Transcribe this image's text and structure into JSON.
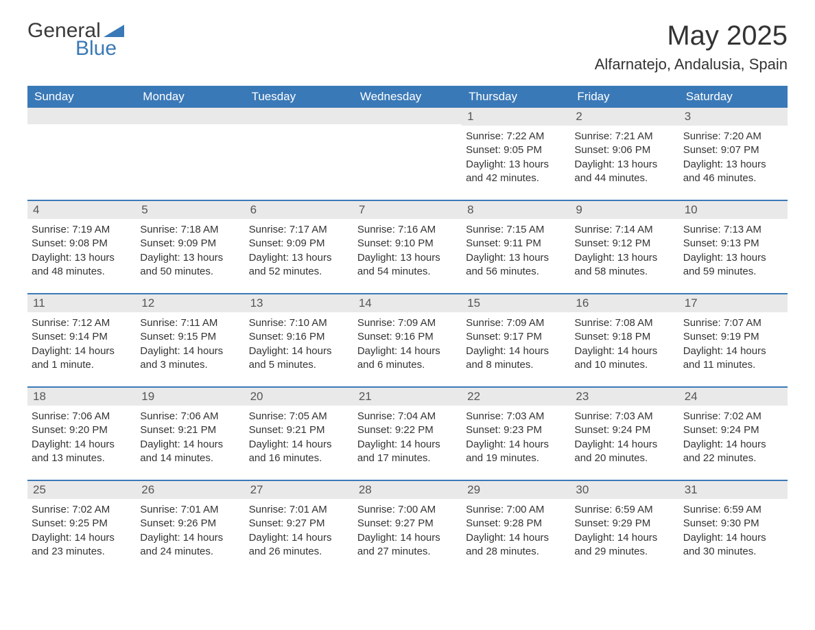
{
  "brand": {
    "word1": "General",
    "word2": "Blue",
    "triangle_color": "#3a79b7",
    "text_color_dark": "#3a3a3a",
    "text_color_blue": "#3a79b7"
  },
  "title": "May 2025",
  "location": "Alfarnatejo, Andalusia, Spain",
  "colors": {
    "header_bg": "#3a79b7",
    "header_text": "#ffffff",
    "daynum_bg": "#e9e9e9",
    "daynum_text": "#555555",
    "body_text": "#333333",
    "page_bg": "#ffffff",
    "row_border": "#3a79b7"
  },
  "typography": {
    "month_title_fontsize": 40,
    "location_fontsize": 22,
    "dow_fontsize": 17,
    "daynum_fontsize": 17,
    "body_fontsize": 15
  },
  "days_of_week": [
    "Sunday",
    "Monday",
    "Tuesday",
    "Wednesday",
    "Thursday",
    "Friday",
    "Saturday"
  ],
  "weeks": [
    [
      {
        "n": "",
        "sunrise": "",
        "sunset": "",
        "daylight": ""
      },
      {
        "n": "",
        "sunrise": "",
        "sunset": "",
        "daylight": ""
      },
      {
        "n": "",
        "sunrise": "",
        "sunset": "",
        "daylight": ""
      },
      {
        "n": "",
        "sunrise": "",
        "sunset": "",
        "daylight": ""
      },
      {
        "n": "1",
        "sunrise": "Sunrise: 7:22 AM",
        "sunset": "Sunset: 9:05 PM",
        "daylight": "Daylight: 13 hours and 42 minutes."
      },
      {
        "n": "2",
        "sunrise": "Sunrise: 7:21 AM",
        "sunset": "Sunset: 9:06 PM",
        "daylight": "Daylight: 13 hours and 44 minutes."
      },
      {
        "n": "3",
        "sunrise": "Sunrise: 7:20 AM",
        "sunset": "Sunset: 9:07 PM",
        "daylight": "Daylight: 13 hours and 46 minutes."
      }
    ],
    [
      {
        "n": "4",
        "sunrise": "Sunrise: 7:19 AM",
        "sunset": "Sunset: 9:08 PM",
        "daylight": "Daylight: 13 hours and 48 minutes."
      },
      {
        "n": "5",
        "sunrise": "Sunrise: 7:18 AM",
        "sunset": "Sunset: 9:09 PM",
        "daylight": "Daylight: 13 hours and 50 minutes."
      },
      {
        "n": "6",
        "sunrise": "Sunrise: 7:17 AM",
        "sunset": "Sunset: 9:09 PM",
        "daylight": "Daylight: 13 hours and 52 minutes."
      },
      {
        "n": "7",
        "sunrise": "Sunrise: 7:16 AM",
        "sunset": "Sunset: 9:10 PM",
        "daylight": "Daylight: 13 hours and 54 minutes."
      },
      {
        "n": "8",
        "sunrise": "Sunrise: 7:15 AM",
        "sunset": "Sunset: 9:11 PM",
        "daylight": "Daylight: 13 hours and 56 minutes."
      },
      {
        "n": "9",
        "sunrise": "Sunrise: 7:14 AM",
        "sunset": "Sunset: 9:12 PM",
        "daylight": "Daylight: 13 hours and 58 minutes."
      },
      {
        "n": "10",
        "sunrise": "Sunrise: 7:13 AM",
        "sunset": "Sunset: 9:13 PM",
        "daylight": "Daylight: 13 hours and 59 minutes."
      }
    ],
    [
      {
        "n": "11",
        "sunrise": "Sunrise: 7:12 AM",
        "sunset": "Sunset: 9:14 PM",
        "daylight": "Daylight: 14 hours and 1 minute."
      },
      {
        "n": "12",
        "sunrise": "Sunrise: 7:11 AM",
        "sunset": "Sunset: 9:15 PM",
        "daylight": "Daylight: 14 hours and 3 minutes."
      },
      {
        "n": "13",
        "sunrise": "Sunrise: 7:10 AM",
        "sunset": "Sunset: 9:16 PM",
        "daylight": "Daylight: 14 hours and 5 minutes."
      },
      {
        "n": "14",
        "sunrise": "Sunrise: 7:09 AM",
        "sunset": "Sunset: 9:16 PM",
        "daylight": "Daylight: 14 hours and 6 minutes."
      },
      {
        "n": "15",
        "sunrise": "Sunrise: 7:09 AM",
        "sunset": "Sunset: 9:17 PM",
        "daylight": "Daylight: 14 hours and 8 minutes."
      },
      {
        "n": "16",
        "sunrise": "Sunrise: 7:08 AM",
        "sunset": "Sunset: 9:18 PM",
        "daylight": "Daylight: 14 hours and 10 minutes."
      },
      {
        "n": "17",
        "sunrise": "Sunrise: 7:07 AM",
        "sunset": "Sunset: 9:19 PM",
        "daylight": "Daylight: 14 hours and 11 minutes."
      }
    ],
    [
      {
        "n": "18",
        "sunrise": "Sunrise: 7:06 AM",
        "sunset": "Sunset: 9:20 PM",
        "daylight": "Daylight: 14 hours and 13 minutes."
      },
      {
        "n": "19",
        "sunrise": "Sunrise: 7:06 AM",
        "sunset": "Sunset: 9:21 PM",
        "daylight": "Daylight: 14 hours and 14 minutes."
      },
      {
        "n": "20",
        "sunrise": "Sunrise: 7:05 AM",
        "sunset": "Sunset: 9:21 PM",
        "daylight": "Daylight: 14 hours and 16 minutes."
      },
      {
        "n": "21",
        "sunrise": "Sunrise: 7:04 AM",
        "sunset": "Sunset: 9:22 PM",
        "daylight": "Daylight: 14 hours and 17 minutes."
      },
      {
        "n": "22",
        "sunrise": "Sunrise: 7:03 AM",
        "sunset": "Sunset: 9:23 PM",
        "daylight": "Daylight: 14 hours and 19 minutes."
      },
      {
        "n": "23",
        "sunrise": "Sunrise: 7:03 AM",
        "sunset": "Sunset: 9:24 PM",
        "daylight": "Daylight: 14 hours and 20 minutes."
      },
      {
        "n": "24",
        "sunrise": "Sunrise: 7:02 AM",
        "sunset": "Sunset: 9:24 PM",
        "daylight": "Daylight: 14 hours and 22 minutes."
      }
    ],
    [
      {
        "n": "25",
        "sunrise": "Sunrise: 7:02 AM",
        "sunset": "Sunset: 9:25 PM",
        "daylight": "Daylight: 14 hours and 23 minutes."
      },
      {
        "n": "26",
        "sunrise": "Sunrise: 7:01 AM",
        "sunset": "Sunset: 9:26 PM",
        "daylight": "Daylight: 14 hours and 24 minutes."
      },
      {
        "n": "27",
        "sunrise": "Sunrise: 7:01 AM",
        "sunset": "Sunset: 9:27 PM",
        "daylight": "Daylight: 14 hours and 26 minutes."
      },
      {
        "n": "28",
        "sunrise": "Sunrise: 7:00 AM",
        "sunset": "Sunset: 9:27 PM",
        "daylight": "Daylight: 14 hours and 27 minutes."
      },
      {
        "n": "29",
        "sunrise": "Sunrise: 7:00 AM",
        "sunset": "Sunset: 9:28 PM",
        "daylight": "Daylight: 14 hours and 28 minutes."
      },
      {
        "n": "30",
        "sunrise": "Sunrise: 6:59 AM",
        "sunset": "Sunset: 9:29 PM",
        "daylight": "Daylight: 14 hours and 29 minutes."
      },
      {
        "n": "31",
        "sunrise": "Sunrise: 6:59 AM",
        "sunset": "Sunset: 9:30 PM",
        "daylight": "Daylight: 14 hours and 30 minutes."
      }
    ]
  ]
}
